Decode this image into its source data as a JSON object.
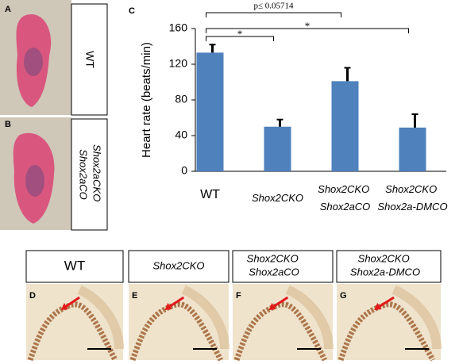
{
  "figure": {
    "panels": [
      "A",
      "B",
      "C",
      "D",
      "E",
      "F",
      "G"
    ],
    "side_labels": [
      "WT",
      "Shox2aCKO Shox2aCO"
    ],
    "bottom_labels": [
      "WT",
      "Shox2CKO",
      "Shox2CKO Shox2aCO",
      "Shox2CKO Shox2a-DMCO"
    ]
  },
  "chart_data": {
    "type": "bar",
    "y_label": "Heart rate (beats/min)",
    "categories": [
      "WT",
      "Shox2CKO",
      "Shox2CKO Shox2aCO",
      "Shox2CKO Shox2a-DMCO"
    ],
    "series": [
      {
        "color": "#4f81bd",
        "values": [
          133,
          50,
          101,
          49
        ],
        "errors": [
          9,
          8,
          15,
          15
        ]
      }
    ],
    "ylim": [
      0,
      160
    ],
    "yticks": [
      0,
      40,
      80,
      120,
      160
    ],
    "annotations": [
      "p≤ 0.05714",
      "*",
      "*"
    ]
  }
}
